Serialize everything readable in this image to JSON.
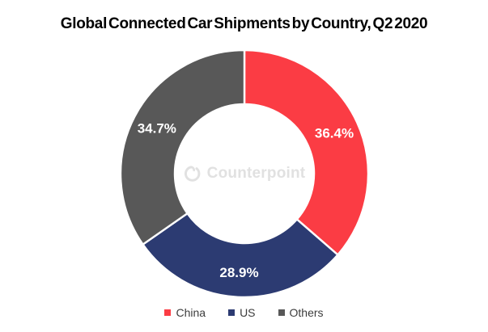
{
  "watermark": {
    "text": "Counterpoint",
    "color": "#E1E1E1"
  },
  "chart_data": {
    "type": "pie",
    "subtype": "donut",
    "title": "Global Connected Car Shipments by Country, Q2 2020",
    "categories": [
      "China",
      "US",
      "Others"
    ],
    "values": [
      36.4,
      28.9,
      34.7
    ],
    "series": [
      {
        "name": "China",
        "value": 36.4,
        "label": "36.4%",
        "color": "#FB3C44"
      },
      {
        "name": "US",
        "value": 28.9,
        "label": "28.9%",
        "color": "#2C3B72"
      },
      {
        "name": "Others",
        "value": 34.7,
        "label": "34.7%",
        "color": "#585858"
      }
    ],
    "start_angle_deg": 0,
    "direction": "clockwise",
    "inner_radius_ratio": 0.56,
    "slice_label_color": "#FFFFFF",
    "slice_gap_color": "#FFFFFF",
    "legend_position": "bottom",
    "legend_text_color": "#3C3C3C",
    "background_color": "#FFFFFF"
  }
}
